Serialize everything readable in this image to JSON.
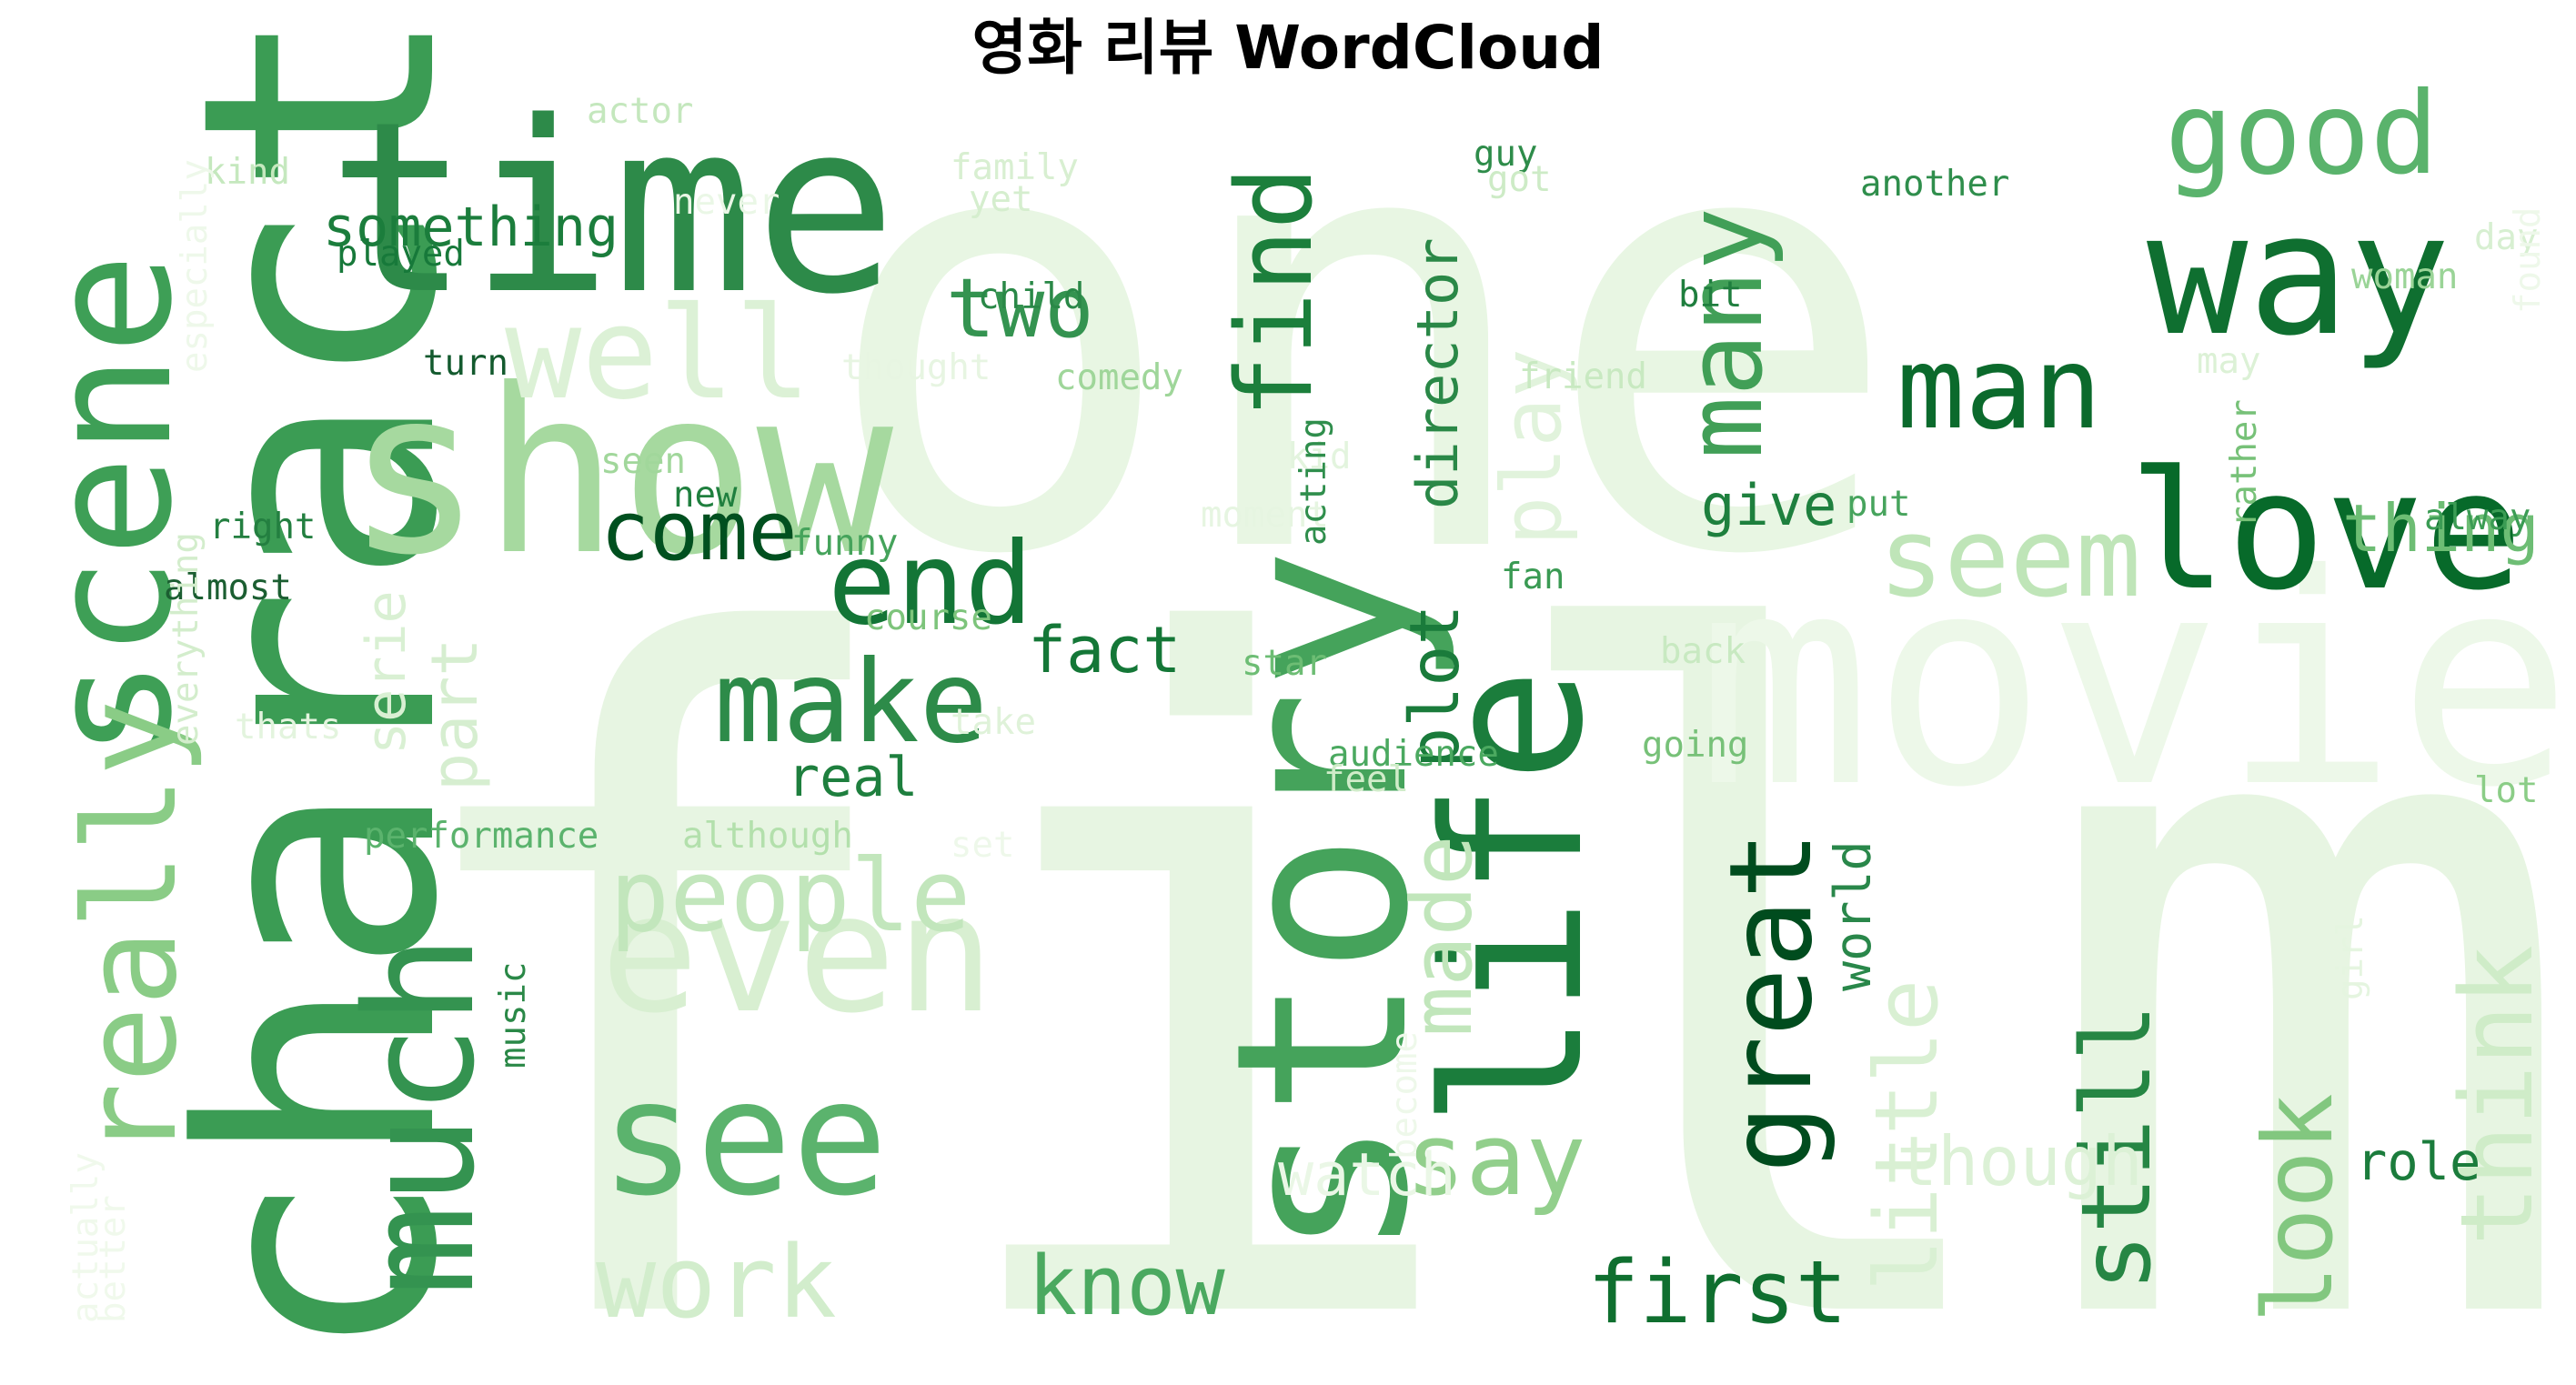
{
  "title": "영화 리뷰 WordCloud",
  "chart_data": {
    "type": "wordcloud",
    "title": "영화 리뷰 WordCloud",
    "colormap": "Greens",
    "words": [
      {
        "text": "film",
        "weight": 1.0,
        "orientation": "horizontal",
        "color": "#e7f5e2"
      },
      {
        "text": "one",
        "weight": 0.6,
        "orientation": "horizontal",
        "color": "#e8f6e3"
      },
      {
        "text": "movie",
        "weight": 0.3,
        "orientation": "horizontal",
        "color": "#edf8e9"
      },
      {
        "text": "character",
        "weight": 0.42,
        "orientation": "vertical",
        "color": "#3b9c54"
      },
      {
        "text": "time",
        "weight": 0.3,
        "orientation": "horizontal",
        "color": "#2d8a49"
      },
      {
        "text": "scene",
        "weight": 0.22,
        "orientation": "vertical",
        "color": "#3e9f56"
      },
      {
        "text": "show",
        "weight": 0.28,
        "orientation": "horizontal",
        "color": "#a6d99f"
      },
      {
        "text": "story",
        "weight": 0.3,
        "orientation": "vertical",
        "color": "#45a35b"
      },
      {
        "text": "life",
        "weight": 0.24,
        "orientation": "vertical",
        "color": "#1b7d3c"
      },
      {
        "text": "way",
        "weight": 0.22,
        "orientation": "horizontal",
        "color": "#0f6f30"
      },
      {
        "text": "love",
        "weight": 0.22,
        "orientation": "horizontal",
        "color": "#076a2a"
      },
      {
        "text": "much",
        "weight": 0.2,
        "orientation": "vertical",
        "color": "#349350"
      },
      {
        "text": "see",
        "weight": 0.2,
        "orientation": "horizontal",
        "color": "#5bb36d"
      },
      {
        "text": "even",
        "weight": 0.22,
        "orientation": "horizontal",
        "color": "#d8efd1"
      },
      {
        "text": "really",
        "weight": 0.16,
        "orientation": "vertical",
        "color": "#8acc86"
      },
      {
        "text": "well",
        "weight": 0.16,
        "orientation": "horizontal",
        "color": "#dcf1d6"
      },
      {
        "text": "good",
        "weight": 0.15,
        "orientation": "horizontal",
        "color": "#5ab36c"
      },
      {
        "text": "man",
        "weight": 0.14,
        "orientation": "horizontal",
        "color": "#0b6a2c"
      },
      {
        "text": "end",
        "weight": 0.14,
        "orientation": "horizontal",
        "color": "#137536"
      },
      {
        "text": "make",
        "weight": 0.14,
        "orientation": "horizontal",
        "color": "#2d8b49"
      },
      {
        "text": "people",
        "weight": 0.13,
        "orientation": "horizontal",
        "color": "#c2e6bc"
      },
      {
        "text": "seem",
        "weight": 0.14,
        "orientation": "horizontal",
        "color": "#bfe5b8"
      },
      {
        "text": "great",
        "weight": 0.14,
        "orientation": "vertical",
        "color": "#004c1e"
      },
      {
        "text": "find",
        "weight": 0.13,
        "orientation": "vertical",
        "color": "#1c7f3c"
      },
      {
        "text": "many",
        "weight": 0.13,
        "orientation": "vertical",
        "color": "#419f57"
      },
      {
        "text": "say",
        "weight": 0.13,
        "orientation": "horizontal",
        "color": "#92cf8c"
      },
      {
        "text": "work",
        "weight": 0.13,
        "orientation": "horizontal",
        "color": "#d2edcc"
      },
      {
        "text": "know",
        "weight": 0.11,
        "orientation": "horizontal",
        "color": "#4ba960"
      },
      {
        "text": "first",
        "weight": 0.11,
        "orientation": "horizontal",
        "color": "#0f6f2f"
      },
      {
        "text": "still",
        "weight": 0.12,
        "orientation": "vertical",
        "color": "#268644"
      },
      {
        "text": "look",
        "weight": 0.12,
        "orientation": "vertical",
        "color": "#82c77f"
      },
      {
        "text": "think",
        "weight": 0.12,
        "orientation": "vertical",
        "color": "#cfecc8"
      },
      {
        "text": "little",
        "weight": 0.11,
        "orientation": "vertical",
        "color": "#d9f0d3"
      },
      {
        "text": "two",
        "weight": 0.1,
        "orientation": "horizontal",
        "color": "#349350"
      },
      {
        "text": "come",
        "weight": 0.1,
        "orientation": "horizontal",
        "color": "#00501f"
      },
      {
        "text": "made",
        "weight": 0.11,
        "orientation": "vertical",
        "color": "#c1e6bb"
      },
      {
        "text": "play",
        "weight": 0.11,
        "orientation": "vertical",
        "color": "#e1f3dc"
      },
      {
        "text": "plot",
        "weight": 0.09,
        "orientation": "vertical",
        "color": "#1a7b3b"
      },
      {
        "text": "director",
        "weight": 0.08,
        "orientation": "vertical",
        "color": "#2a8847"
      },
      {
        "text": "thing",
        "weight": 0.08,
        "orientation": "horizontal",
        "color": "#6dbd74"
      },
      {
        "text": "give",
        "weight": 0.07,
        "orientation": "horizontal",
        "color": "#1e803e"
      },
      {
        "text": "fact",
        "weight": 0.08,
        "orientation": "horizontal",
        "color": "#147737"
      },
      {
        "text": "part",
        "weight": 0.08,
        "orientation": "vertical",
        "color": "#d6eed0"
      },
      {
        "text": "real",
        "weight": 0.065,
        "orientation": "horizontal",
        "color": "#1e7f3e"
      },
      {
        "text": "something",
        "weight": 0.07,
        "orientation": "horizontal",
        "color": "#1b7d3c"
      },
      {
        "text": "though",
        "weight": 0.08,
        "orientation": "horizontal",
        "color": "#dcf1d6"
      },
      {
        "text": "watch",
        "weight": 0.07,
        "orientation": "horizontal",
        "color": "#eaf7e6"
      },
      {
        "text": "role",
        "weight": 0.065,
        "orientation": "horizontal",
        "color": "#1b7c3c"
      },
      {
        "text": "serie",
        "weight": 0.06,
        "orientation": "vertical",
        "color": "#d9f0d3"
      },
      {
        "text": "world",
        "weight": 0.06,
        "orientation": "vertical",
        "color": "#29874a"
      },
      {
        "text": "another",
        "weight": 0.043,
        "orientation": "horizontal",
        "color": "#2f8e4c"
      },
      {
        "text": "played",
        "weight": 0.043,
        "orientation": "horizontal",
        "color": "#17793a"
      },
      {
        "text": "turn",
        "weight": 0.043,
        "orientation": "horizontal",
        "color": "#135a2e"
      },
      {
        "text": "child",
        "weight": 0.043,
        "orientation": "horizontal",
        "color": "#2a8847"
      },
      {
        "text": "comedy",
        "weight": 0.043,
        "orientation": "horizontal",
        "color": "#9fd69a"
      },
      {
        "text": "thought",
        "weight": 0.043,
        "orientation": "horizontal",
        "color": "#e7f5e2"
      },
      {
        "text": "friend",
        "weight": 0.043,
        "orientation": "horizontal",
        "color": "#c8e9c1"
      },
      {
        "text": "woman",
        "weight": 0.043,
        "orientation": "horizontal",
        "color": "#9ad497"
      },
      {
        "text": "bit",
        "weight": 0.043,
        "orientation": "horizontal",
        "color": "#1f7e3e"
      },
      {
        "text": "guy",
        "weight": 0.043,
        "orientation": "horizontal",
        "color": "#2e8c4a"
      },
      {
        "text": "got",
        "weight": 0.043,
        "orientation": "horizontal",
        "color": "#cdebc6"
      },
      {
        "text": "actor",
        "weight": 0.043,
        "orientation": "horizontal",
        "color": "#c4e7bd"
      },
      {
        "text": "kind",
        "weight": 0.043,
        "orientation": "horizontal",
        "color": "#c5e8be"
      },
      {
        "text": "family",
        "weight": 0.043,
        "orientation": "horizontal",
        "color": "#d8efd1"
      },
      {
        "text": "yet",
        "weight": 0.043,
        "orientation": "horizontal",
        "color": "#d5eece"
      },
      {
        "text": "never",
        "weight": 0.043,
        "orientation": "horizontal",
        "color": "#eaf7e6"
      },
      {
        "text": "day",
        "weight": 0.043,
        "orientation": "horizontal",
        "color": "#d7efd1"
      },
      {
        "text": "may",
        "weight": 0.043,
        "orientation": "horizontal",
        "color": "#dcf1d6"
      },
      {
        "text": "seen",
        "weight": 0.043,
        "orientation": "horizontal",
        "color": "#a1d79b"
      },
      {
        "text": "new",
        "weight": 0.043,
        "orientation": "horizontal",
        "color": "#1f7f3e"
      },
      {
        "text": "kid",
        "weight": 0.043,
        "orientation": "horizontal",
        "color": "#e3f4de"
      },
      {
        "text": "moment",
        "weight": 0.043,
        "orientation": "horizontal",
        "color": "#e6f5e1"
      },
      {
        "text": "right",
        "weight": 0.043,
        "orientation": "horizontal",
        "color": "#237f40"
      },
      {
        "text": "funny",
        "weight": 0.043,
        "orientation": "horizontal",
        "color": "#45a35b"
      },
      {
        "text": "almost",
        "weight": 0.043,
        "orientation": "horizontal",
        "color": "#1b5e31"
      },
      {
        "text": "course",
        "weight": 0.043,
        "orientation": "horizontal",
        "color": "#7dc47b"
      },
      {
        "text": "put",
        "weight": 0.043,
        "orientation": "horizontal",
        "color": "#47a45d"
      },
      {
        "text": "alway",
        "weight": 0.043,
        "orientation": "horizontal",
        "color": "#3b9c54"
      },
      {
        "text": "fan",
        "weight": 0.043,
        "orientation": "horizontal",
        "color": "#3a9a53"
      },
      {
        "text": "back",
        "weight": 0.043,
        "orientation": "horizontal",
        "color": "#c8e9c1"
      },
      {
        "text": "star",
        "weight": 0.043,
        "orientation": "horizontal",
        "color": "#6dbd74"
      },
      {
        "text": "thats",
        "weight": 0.043,
        "orientation": "horizontal",
        "color": "#e3f4de"
      },
      {
        "text": "take",
        "weight": 0.043,
        "orientation": "horizontal",
        "color": "#dff2d9"
      },
      {
        "text": "going",
        "weight": 0.043,
        "orientation": "horizontal",
        "color": "#77c178"
      },
      {
        "text": "audience",
        "weight": 0.043,
        "orientation": "horizontal",
        "color": "#4ba960"
      },
      {
        "text": "feel",
        "weight": 0.043,
        "orientation": "horizontal",
        "color": "#d0ecc9"
      },
      {
        "text": "lot",
        "weight": 0.043,
        "orientation": "horizontal",
        "color": "#8bcd87"
      },
      {
        "text": "performance",
        "weight": 0.043,
        "orientation": "horizontal",
        "color": "#5bb36d"
      },
      {
        "text": "although",
        "weight": 0.043,
        "orientation": "horizontal",
        "color": "#b3e0ac"
      },
      {
        "text": "set",
        "weight": 0.043,
        "orientation": "horizontal",
        "color": "#eef8ea"
      },
      {
        "text": "music",
        "weight": 0.043,
        "orientation": "vertical",
        "color": "#2a8847"
      },
      {
        "text": "acting",
        "weight": 0.043,
        "orientation": "vertical",
        "color": "#2f8e4c"
      },
      {
        "text": "rather",
        "weight": 0.043,
        "orientation": "vertical",
        "color": "#77c178"
      },
      {
        "text": "especially",
        "weight": 0.043,
        "orientation": "vertical",
        "color": "#eef8ea"
      },
      {
        "text": "everything",
        "weight": 0.043,
        "orientation": "vertical",
        "color": "#d3edcc"
      },
      {
        "text": "become",
        "weight": 0.043,
        "orientation": "vertical",
        "color": "#eef8ea"
      },
      {
        "text": "girl",
        "weight": 0.043,
        "orientation": "vertical",
        "color": "#e5f5e0"
      },
      {
        "text": "found",
        "weight": 0.043,
        "orientation": "vertical",
        "color": "#eef8ea"
      },
      {
        "text": "actually",
        "weight": 0.043,
        "orientation": "vertical",
        "color": "#f0f9ec"
      },
      {
        "text": "better",
        "weight": 0.043,
        "orientation": "vertical",
        "color": "#f0f9ec"
      }
    ]
  }
}
